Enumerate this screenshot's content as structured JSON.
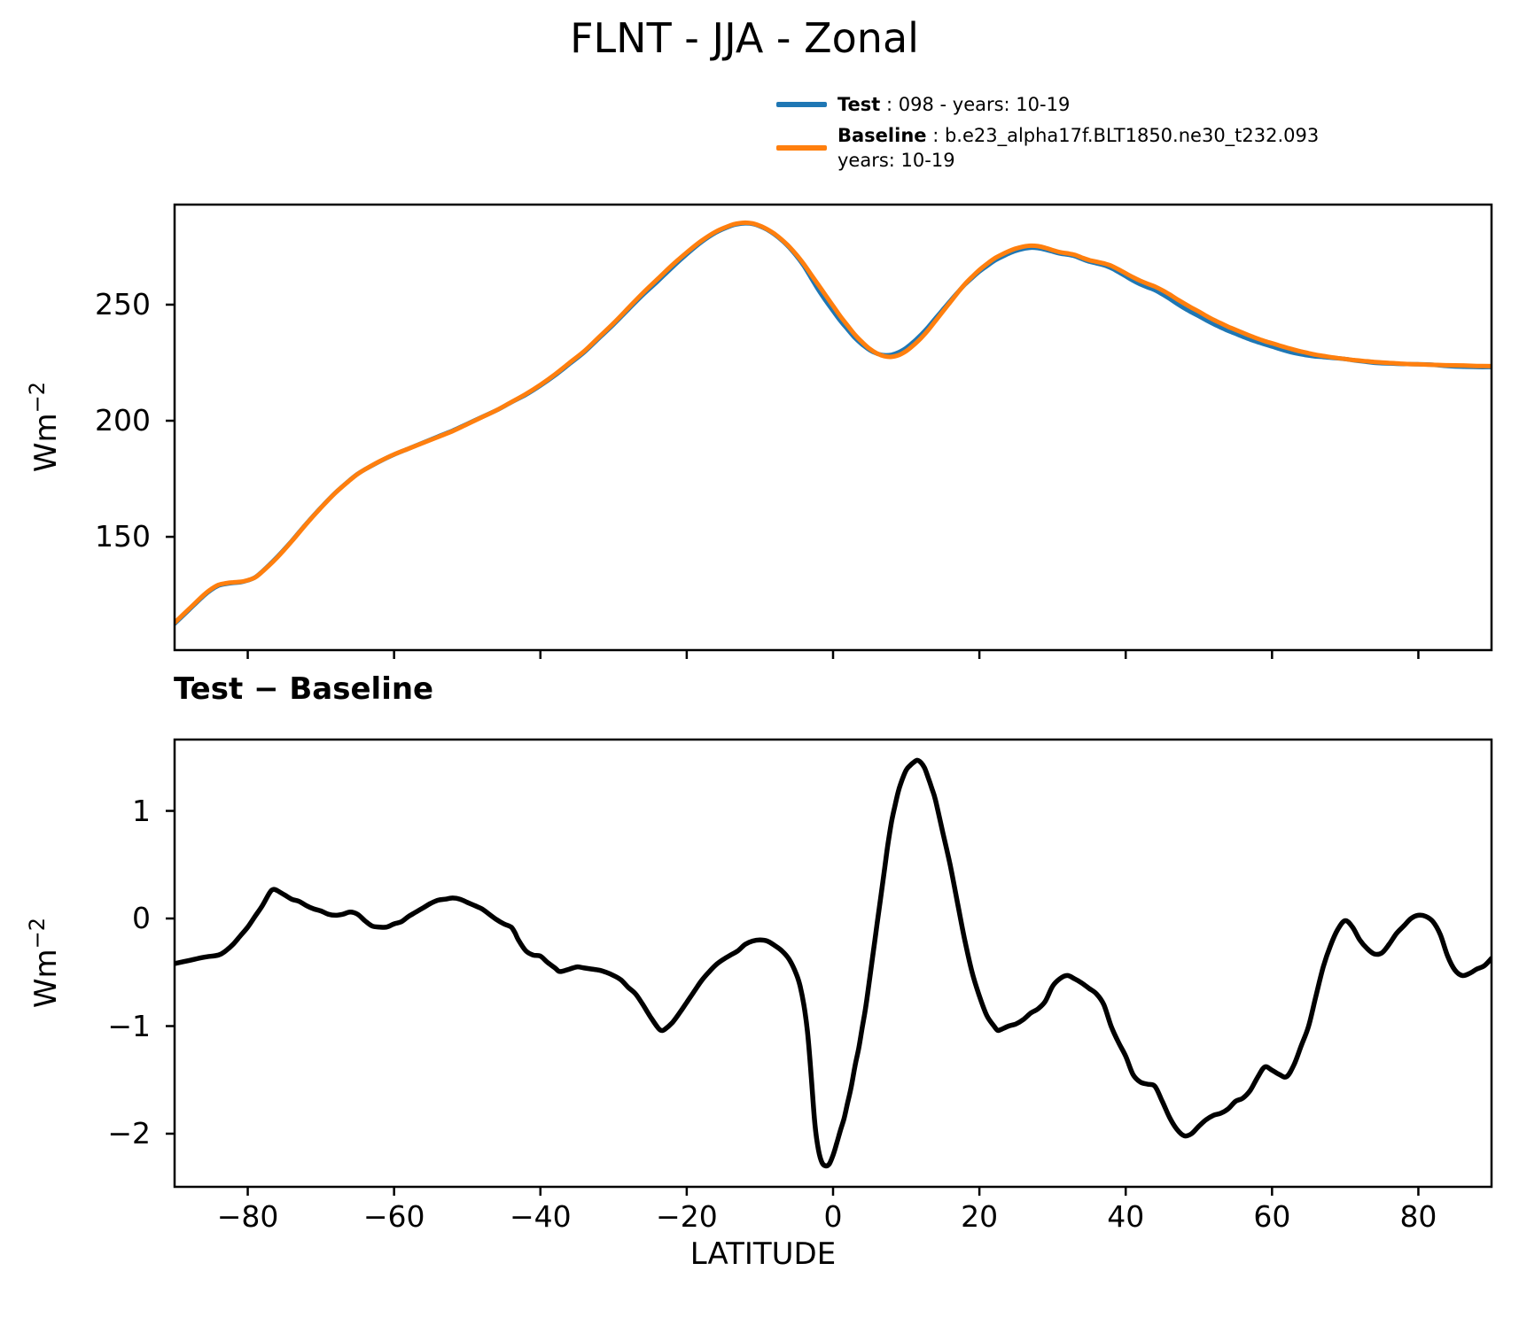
{
  "legend": {
    "items": [
      {
        "label_bold": "Test",
        "label_rest": " : 098 - years: 10-19",
        "color": "#1f77b4"
      },
      {
        "label_bold": "Baseline",
        "label_rest": " : b.e23_alpha17f.BLT1850.ne30_t232.093",
        "label_line2": "years: 10-19",
        "color": "#ff7f0e"
      }
    ]
  },
  "axis": {
    "ylabel_base": "Wm",
    "ylabel_exp": "−2",
    "xlabel": "LATITUDE"
  },
  "chart_data": [
    {
      "type": "line",
      "panel": "top",
      "title": "FLNT - JJA - Zonal",
      "ylabel": "Wm^-2",
      "xlabel": "LATITUDE",
      "xlim": [
        -90,
        90
      ],
      "ylim": [
        101.2,
        293.1
      ],
      "yticks": [
        150,
        200,
        250
      ],
      "ytick_labels": [
        "150",
        "200",
        "250"
      ],
      "xticks": [
        -80,
        -60,
        -40,
        -20,
        0,
        20,
        40,
        60,
        80
      ],
      "legend_position": "above-right",
      "grid": false,
      "series": [
        {
          "name": "Test : 098 - years: 10-19",
          "color": "#1f77b4",
          "derived": "baseline_plus_diff"
        },
        {
          "name": "Baseline : b.e23_alpha17f.BLT1850.ne30_t232.093 years: 10-19",
          "color": "#ff7f0e",
          "x": [
            -90,
            -88,
            -86,
            -85,
            -84,
            -83,
            -82,
            -81,
            -80,
            -79,
            -78,
            -76,
            -74,
            -72,
            -70,
            -68,
            -66,
            -65,
            -64,
            -62,
            -60,
            -58,
            -56,
            -54,
            -52,
            -50,
            -48,
            -46,
            -44,
            -42,
            -40,
            -38,
            -36,
            -34,
            -32,
            -30,
            -28,
            -26,
            -24,
            -22,
            -20,
            -18,
            -16,
            -14,
            -13,
            -12,
            -11,
            -10,
            -9,
            -8,
            -7,
            -6,
            -5,
            -4,
            -3,
            -2,
            -1,
            0,
            1,
            2,
            3,
            4,
            5,
            6,
            7,
            8,
            9,
            10,
            11,
            12,
            13,
            14,
            15,
            16,
            17,
            18,
            19,
            20,
            21,
            22,
            23,
            24,
            25,
            26,
            27,
            28,
            29,
            30,
            31,
            32,
            33,
            34,
            35,
            36,
            37,
            38,
            39,
            40,
            41,
            42,
            43,
            44,
            45,
            46,
            47,
            48,
            49,
            50,
            51,
            52,
            53,
            54,
            55,
            56,
            57,
            58,
            59,
            60,
            61,
            62,
            63,
            64,
            65,
            66,
            67,
            68,
            69,
            70,
            71,
            72,
            73,
            74,
            75,
            76,
            77,
            78,
            79,
            80,
            82,
            84,
            86,
            88,
            90
          ],
          "y": [
            113,
            119,
            125,
            127.5,
            129.3,
            130,
            130.4,
            130.6,
            131.3,
            132.5,
            135,
            141,
            148,
            155.5,
            162.5,
            169,
            174.5,
            177,
            179,
            182.5,
            185.5,
            188,
            190.5,
            193,
            195.5,
            198.5,
            201.5,
            204.5,
            208,
            211.5,
            215.5,
            220,
            225,
            230,
            236,
            242,
            248.5,
            255,
            261,
            267,
            272.5,
            277.5,
            281.5,
            284.2,
            285,
            285.3,
            285,
            284,
            282.5,
            280.5,
            278,
            275,
            271.5,
            267.5,
            263,
            258.5,
            254,
            249.5,
            245,
            241,
            237,
            233.8,
            231,
            229,
            227.8,
            227.5,
            228.3,
            230,
            232.5,
            235.5,
            239,
            243,
            247,
            251,
            255,
            258.8,
            262,
            265,
            267.5,
            269.8,
            271.5,
            273,
            274.2,
            275,
            275.4,
            275.2,
            274.5,
            273.5,
            272.6,
            272.1,
            271.5,
            270.3,
            269.2,
            268.5,
            267.8,
            266.8,
            265.2,
            263.5,
            261.8,
            260.3,
            259,
            257.8,
            256.2,
            254.4,
            252.4,
            250.5,
            248.7,
            247,
            245.2,
            243.5,
            242,
            240.5,
            239.2,
            237.9,
            236.6,
            235.4,
            234.3,
            233.4,
            232.4,
            231.5,
            230.6,
            229.8,
            229.1,
            228.4,
            227.9,
            227.4,
            227,
            226.6,
            226.2,
            225.9,
            225.6,
            225.3,
            225.1,
            224.9,
            224.7,
            224.5,
            224.4,
            224.3,
            224.1,
            223.9,
            223.8,
            223.6,
            223.5
          ]
        }
      ]
    },
    {
      "type": "line",
      "panel": "bottom",
      "title": "Test − Baseline",
      "ylabel": "Wm^-2",
      "xlabel": "LATITUDE",
      "xlim": [
        -90,
        90
      ],
      "ylim": [
        -2.494,
        1.663
      ],
      "yticks": [
        -2,
        -1,
        0,
        1
      ],
      "ytick_labels": [
        "−2",
        "−1",
        "0",
        "1"
      ],
      "xticks": [
        -80,
        -60,
        -40,
        -20,
        0,
        20,
        40,
        60,
        80
      ],
      "xtick_labels": [
        "−80",
        "−60",
        "−40",
        "−20",
        "0",
        "20",
        "40",
        "60",
        "80"
      ],
      "grid": false,
      "series": [
        {
          "name": "Test − Baseline",
          "color": "#000000",
          "x": [
            -90,
            -88,
            -86,
            -84,
            -83,
            -82,
            -81,
            -80,
            -79,
            -78,
            -77,
            -76.5,
            -76,
            -75,
            -74,
            -73,
            -72,
            -71,
            -70,
            -69,
            -68,
            -67,
            -66,
            -65,
            -64,
            -63,
            -62,
            -61,
            -60,
            -59,
            -58,
            -57,
            -56,
            -55,
            -54,
            -53,
            -52,
            -51,
            -50,
            -49,
            -48,
            -47,
            -46,
            -45,
            -44,
            -43.5,
            -43,
            -42,
            -41,
            -40,
            -39,
            -38,
            -37.5,
            -37,
            -36,
            -35,
            -34,
            -33,
            -32,
            -31,
            -30,
            -29,
            -28,
            -27,
            -26,
            -25,
            -24,
            -23.5,
            -23,
            -22,
            -21,
            -20,
            -19,
            -18,
            -17,
            -16,
            -15,
            -14,
            -13,
            -12,
            -11,
            -10,
            -9,
            -8,
            -7,
            -6,
            -5,
            -4.5,
            -4,
            -3.5,
            -3,
            -2.5,
            -2,
            -1.5,
            -1,
            -0.5,
            0,
            0.5,
            1,
            1.5,
            2,
            2.5,
            3,
            3.5,
            4,
            4.5,
            5,
            5.5,
            6,
            6.5,
            7,
            7.5,
            8,
            8.5,
            9,
            9.5,
            10,
            10.5,
            11,
            11.5,
            12,
            12.5,
            13,
            13.5,
            14,
            15,
            16,
            17,
            18,
            19,
            20,
            21,
            22,
            22.5,
            23,
            24,
            25,
            26,
            27,
            28,
            29,
            30,
            31,
            32,
            33,
            34,
            35,
            36,
            37,
            38,
            39,
            40,
            41,
            42,
            43,
            44,
            45,
            46,
            47,
            48,
            49,
            50,
            51,
            52,
            53,
            54,
            55,
            56,
            57,
            58,
            59,
            60,
            61,
            62,
            63,
            64,
            65,
            66,
            67,
            68,
            69,
            70,
            71,
            72,
            73,
            74,
            75,
            76,
            77,
            78,
            79,
            80,
            81,
            82,
            83,
            84,
            85,
            86,
            87,
            88,
            89,
            90
          ],
          "y": [
            -0.42,
            -0.39,
            -0.36,
            -0.34,
            -0.3,
            -0.24,
            -0.16,
            -0.08,
            0.02,
            0.12,
            0.24,
            0.27,
            0.26,
            0.22,
            0.18,
            0.16,
            0.12,
            0.09,
            0.07,
            0.04,
            0.03,
            0.04,
            0.06,
            0.04,
            -0.02,
            -0.07,
            -0.08,
            -0.08,
            -0.05,
            -0.03,
            0.02,
            0.06,
            0.1,
            0.14,
            0.17,
            0.18,
            0.19,
            0.18,
            0.15,
            0.12,
            0.09,
            0.04,
            -0.01,
            -0.05,
            -0.08,
            -0.13,
            -0.2,
            -0.3,
            -0.34,
            -0.35,
            -0.41,
            -0.46,
            -0.49,
            -0.49,
            -0.47,
            -0.45,
            -0.46,
            -0.47,
            -0.48,
            -0.5,
            -0.53,
            -0.57,
            -0.64,
            -0.7,
            -0.8,
            -0.91,
            -1.01,
            -1.04,
            -1.03,
            -0.97,
            -0.88,
            -0.78,
            -0.68,
            -0.58,
            -0.5,
            -0.43,
            -0.38,
            -0.34,
            -0.3,
            -0.24,
            -0.21,
            -0.2,
            -0.21,
            -0.25,
            -0.3,
            -0.38,
            -0.52,
            -0.63,
            -0.8,
            -1.05,
            -1.45,
            -1.9,
            -2.15,
            -2.27,
            -2.3,
            -2.28,
            -2.2,
            -2.09,
            -1.97,
            -1.86,
            -1.71,
            -1.56,
            -1.37,
            -1.21,
            -1.01,
            -0.81,
            -0.56,
            -0.31,
            -0.06,
            0.19,
            0.44,
            0.69,
            0.9,
            1.06,
            1.2,
            1.3,
            1.38,
            1.42,
            1.45,
            1.47,
            1.45,
            1.4,
            1.31,
            1.21,
            1.1,
            0.8,
            0.5,
            0.15,
            -0.2,
            -0.5,
            -0.72,
            -0.9,
            -1.0,
            -1.04,
            -1.03,
            -1.0,
            -0.98,
            -0.94,
            -0.88,
            -0.84,
            -0.77,
            -0.63,
            -0.56,
            -0.53,
            -0.56,
            -0.6,
            -0.65,
            -0.7,
            -0.8,
            -1.0,
            -1.15,
            -1.28,
            -1.45,
            -1.52,
            -1.54,
            -1.56,
            -1.7,
            -1.85,
            -1.96,
            -2.02,
            -2.0,
            -1.93,
            -1.87,
            -1.83,
            -1.81,
            -1.77,
            -1.7,
            -1.67,
            -1.6,
            -1.48,
            -1.38,
            -1.41,
            -1.45,
            -1.47,
            -1.36,
            -1.18,
            -1.0,
            -0.72,
            -0.45,
            -0.25,
            -0.1,
            -0.02,
            -0.08,
            -0.2,
            -0.28,
            -0.33,
            -0.32,
            -0.24,
            -0.14,
            -0.07,
            0.0,
            0.03,
            0.02,
            -0.03,
            -0.15,
            -0.35,
            -0.48,
            -0.53,
            -0.51,
            -0.47,
            -0.44,
            -0.37
          ]
        }
      ]
    }
  ]
}
